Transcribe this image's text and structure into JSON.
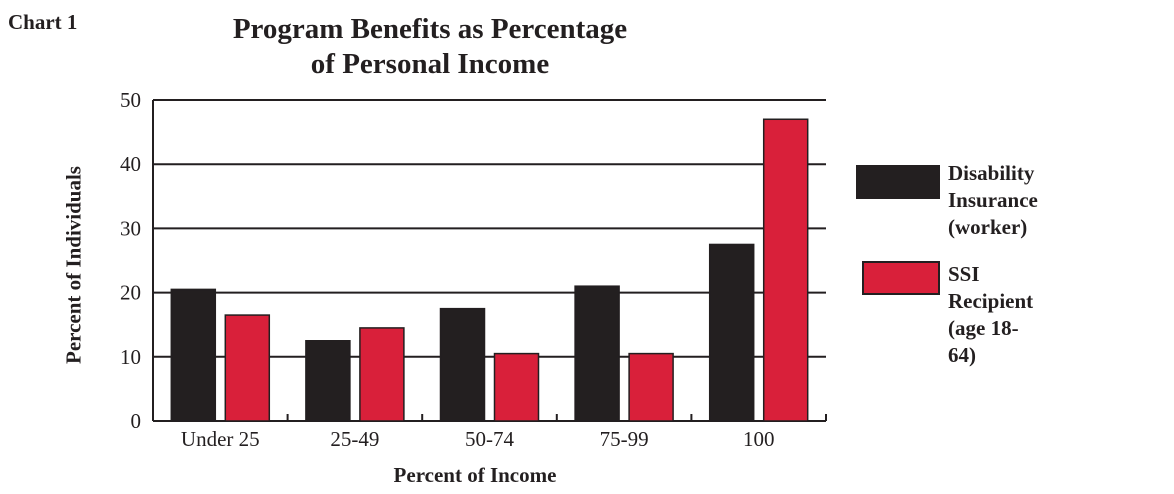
{
  "header": {
    "chart_label": "Chart 1",
    "title": "Program Benefits as Percentage\nof Personal Income"
  },
  "chart_data": {
    "type": "bar",
    "title": "Program Benefits as Percentage of Personal Income",
    "xlabel": "Percent of Income",
    "ylabel": "Percent of Individuals",
    "categories": [
      "Under 25",
      "25-49",
      "50-74",
      "75-99",
      "100"
    ],
    "series": [
      {
        "name": "Disability Insurance (worker)",
        "color": "#231f20",
        "values": [
          20.5,
          12.5,
          17.5,
          21,
          27.5
        ]
      },
      {
        "name": "SSI Recipient (age 18-64)",
        "color": "#d9203a",
        "values": [
          16.5,
          14.5,
          10.5,
          10.5,
          47
        ]
      }
    ],
    "ylim": [
      0,
      50
    ],
    "yticks": [
      0,
      10,
      20,
      30,
      40,
      50
    ],
    "grid": true,
    "legend": "right"
  },
  "legend": {
    "items": [
      {
        "label": "Disability\nInsurance (worker)",
        "color": "#231f20"
      },
      {
        "label": "SSI Recipient\n(age 18-64)",
        "color": "#d9203a"
      }
    ]
  }
}
